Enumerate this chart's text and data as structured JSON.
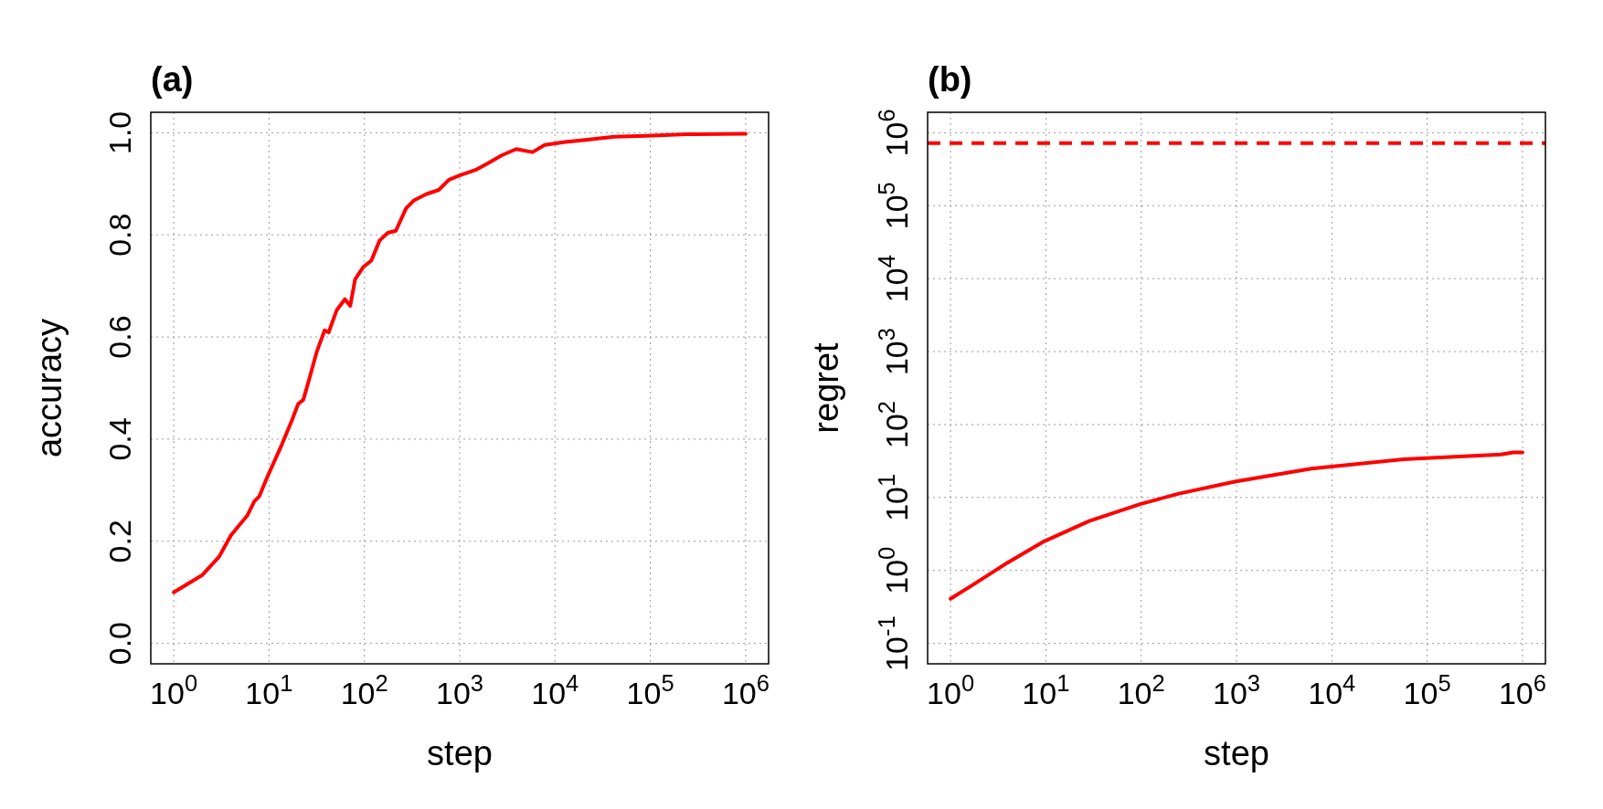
{
  "chart_data": [
    {
      "type": "line",
      "title": "(a)",
      "xlabel": "step",
      "ylabel": "accuracy",
      "log": "x",
      "grid": true,
      "line_style": "solid",
      "xlim": [
        0.575,
        1740000
      ],
      "ylim": [
        -0.04,
        1.04
      ],
      "xticks": [
        {
          "value": 1,
          "label": "10$^{0}$"
        },
        {
          "value": 10,
          "label": "10$^{1}$"
        },
        {
          "value": 100,
          "label": "10$^{2}$"
        },
        {
          "value": 1000,
          "label": "10$^{3}$"
        },
        {
          "value": 10000,
          "label": "10$^{4}$"
        },
        {
          "value": 100000,
          "label": "10$^{5}$"
        },
        {
          "value": 1000000,
          "label": "10$^{6}$"
        }
      ],
      "yticks": [
        {
          "value": 0,
          "label": "0.0"
        },
        0.2,
        0.4,
        0.6,
        0.8,
        {
          "value": 1,
          "label": "1.0"
        }
      ],
      "series": [
        {
          "color": "#ff0000",
          "x": [
            1,
            2,
            3,
            4,
            5.9,
            7,
            7.9,
            9.6,
            13.6,
            17.4,
            20.2,
            22.9,
            27.1,
            31.4,
            38.3,
            42.2,
            51.4,
            62.5,
            71.1,
            80,
            97.5,
            118.6,
            144.5,
            175.9,
            214,
            274,
            334,
            449,
            603,
            771,
            986,
            1462,
            1965,
            2773,
            3918,
            5808,
            7800,
            12770,
            20900,
            41700,
            91200,
            245000,
            1000000
          ],
          "values": [
            0.1,
            0.134,
            0.17,
            0.212,
            0.25,
            0.278,
            0.288,
            0.326,
            0.389,
            0.437,
            0.469,
            0.477,
            0.525,
            0.569,
            0.613,
            0.609,
            0.653,
            0.674,
            0.661,
            0.713,
            0.737,
            0.75,
            0.789,
            0.804,
            0.808,
            0.852,
            0.868,
            0.88,
            0.888,
            0.908,
            0.916,
            0.927,
            0.94,
            0.956,
            0.968,
            0.962,
            0.976,
            0.982,
            0.986,
            0.992,
            0.994,
            0.997,
            0.998
          ]
        }
      ]
    },
    {
      "type": "line",
      "title": "(b)",
      "xlabel": "step",
      "ylabel": "regret",
      "log": "xy",
      "grid": true,
      "line_style": "solid",
      "xlim": [
        0.575,
        1740000
      ],
      "ylim": [
        0.0525,
        1905000
      ],
      "xticks": [
        {
          "value": 1,
          "label": "10$^{0}$"
        },
        {
          "value": 10,
          "label": "10$^{1}$"
        },
        {
          "value": 100,
          "label": "10$^{2}$"
        },
        {
          "value": 1000,
          "label": "10$^{3}$"
        },
        {
          "value": 10000,
          "label": "10$^{4}$"
        },
        {
          "value": 100000,
          "label": "10$^{5}$"
        },
        {
          "value": 1000000,
          "label": "10$^{6}$"
        }
      ],
      "yticks": [
        {
          "value": 0.1,
          "label": "10$^{-1}$"
        },
        {
          "value": 1,
          "label": "10$^{0}$"
        },
        {
          "value": 10,
          "label": "10$^{1}$"
        },
        {
          "value": 100,
          "label": "10$^{2}$"
        },
        {
          "value": 1000,
          "label": "10$^{3}$"
        },
        {
          "value": 10000,
          "label": "10$^{4}$"
        },
        {
          "value": 100000,
          "label": "10$^{5}$"
        },
        {
          "value": 1000000,
          "label": "10$^{6}$"
        }
      ],
      "ref_lines": [
        {
          "axis": "y",
          "value": 720000,
          "color": "#ff0000",
          "line_style": "dashed"
        }
      ],
      "series": [
        {
          "color": "#ff0000",
          "x": [
            1,
            1.8,
            3.97,
            9.6,
            28.5,
            97.5,
            248,
            986,
            6100,
            56000,
            594000,
            795000,
            1000000
          ],
          "values": [
            0.41,
            0.66,
            1.28,
            2.51,
            4.75,
            8.1,
            11.3,
            16.6,
            24.9,
            33.4,
            38.9,
            41.5,
            41.5
          ]
        }
      ]
    }
  ]
}
